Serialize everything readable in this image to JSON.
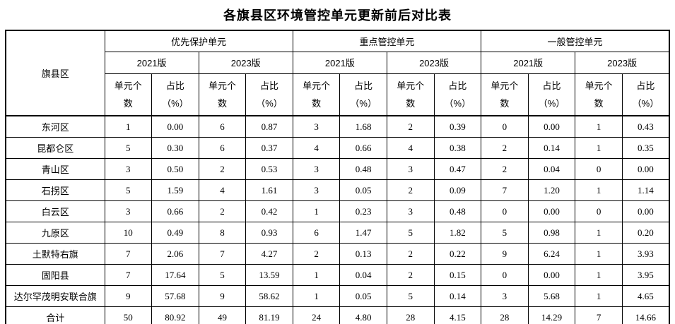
{
  "title": "各旗县区环境管控单元更新前后对比表",
  "table": {
    "corner_header": "旗县区",
    "groups": [
      {
        "label": "优先保护单元",
        "versions": [
          "2021版",
          "2023版"
        ]
      },
      {
        "label": "重点管控单元",
        "versions": [
          "2021版",
          "2023版"
        ]
      },
      {
        "label": "一般管控单元",
        "versions": [
          "2021版",
          "2023版"
        ]
      }
    ],
    "subheader": {
      "count": [
        "单元个",
        "数"
      ],
      "ratio": [
        "占比",
        "（%）"
      ]
    },
    "rows": [
      {
        "name": "东河区",
        "values": [
          "1",
          "0.00",
          "6",
          "0.87",
          "3",
          "1.68",
          "2",
          "0.39",
          "0",
          "0.00",
          "1",
          "0.43"
        ]
      },
      {
        "name": "昆都仑区",
        "values": [
          "5",
          "0.30",
          "6",
          "0.37",
          "4",
          "0.66",
          "4",
          "0.38",
          "2",
          "0.14",
          "1",
          "0.35"
        ]
      },
      {
        "name": "青山区",
        "values": [
          "3",
          "0.50",
          "2",
          "0.53",
          "3",
          "0.48",
          "3",
          "0.47",
          "2",
          "0.04",
          "0",
          "0.00"
        ]
      },
      {
        "name": "石拐区",
        "values": [
          "5",
          "1.59",
          "4",
          "1.61",
          "3",
          "0.05",
          "2",
          "0.09",
          "7",
          "1.20",
          "1",
          "1.14"
        ]
      },
      {
        "name": "白云区",
        "values": [
          "3",
          "0.66",
          "2",
          "0.42",
          "1",
          "0.23",
          "3",
          "0.48",
          "0",
          "0.00",
          "0",
          "0.00"
        ]
      },
      {
        "name": "九原区",
        "values": [
          "10",
          "0.49",
          "8",
          "0.93",
          "6",
          "1.47",
          "5",
          "1.82",
          "5",
          "0.98",
          "1",
          "0.20"
        ]
      },
      {
        "name": "土默特右旗",
        "values": [
          "7",
          "2.06",
          "7",
          "4.27",
          "2",
          "0.13",
          "2",
          "0.22",
          "9",
          "6.24",
          "1",
          "3.93"
        ]
      },
      {
        "name": "固阳县",
        "values": [
          "7",
          "17.64",
          "5",
          "13.59",
          "1",
          "0.04",
          "2",
          "0.15",
          "0",
          "0.00",
          "1",
          "3.95"
        ]
      },
      {
        "name": "达尔罕茂明安联合旗",
        "values": [
          "9",
          "57.68",
          "9",
          "58.62",
          "1",
          "0.05",
          "5",
          "0.14",
          "3",
          "5.68",
          "1",
          "4.65"
        ]
      },
      {
        "name": "合计",
        "values": [
          "50",
          "80.92",
          "49",
          "81.19",
          "24",
          "4.80",
          "28",
          "4.15",
          "28",
          "14.29",
          "7",
          "14.66"
        ]
      }
    ]
  }
}
